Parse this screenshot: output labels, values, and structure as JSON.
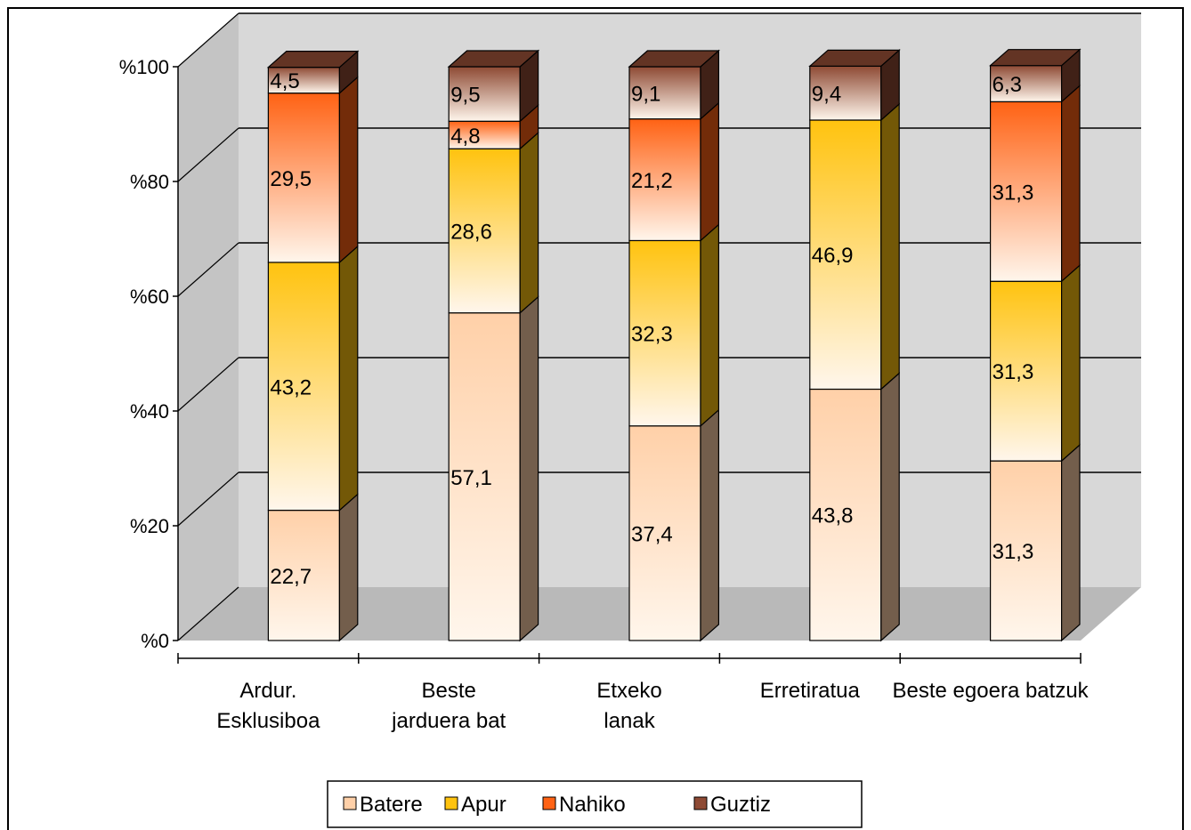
{
  "chart_data": {
    "type": "bar",
    "stacked": true,
    "percent": true,
    "three_d": true,
    "title": "",
    "xlabel": "",
    "ylabel": "",
    "ylim": [
      0,
      100
    ],
    "y_ticks": [
      "%0",
      "%20",
      "%40",
      "%60",
      "%80",
      "%100"
    ],
    "grid": true,
    "legend_position": "bottom",
    "categories": [
      [
        "Ardur.",
        "Esklusiboa"
      ],
      [
        "Beste",
        "jarduera bat"
      ],
      [
        "Etxeko",
        "lanak"
      ],
      [
        "Erretiratua"
      ],
      [
        "Beste egoera batzuk"
      ]
    ],
    "series": [
      {
        "name": "Batere",
        "values": [
          22.7,
          57.1,
          37.4,
          43.8,
          31.3
        ],
        "labels": [
          "22,7",
          "57,1",
          "37,4",
          "43,8",
          "31,3"
        ],
        "color": "#ffd0a8"
      },
      {
        "name": "Apur",
        "values": [
          43.2,
          28.6,
          32.3,
          46.9,
          31.3
        ],
        "labels": [
          "43,2",
          "28,6",
          "32,3",
          "46,9",
          "31,3"
        ],
        "color": "#ffc30f"
      },
      {
        "name": "Nahiko",
        "values": [
          29.5,
          4.8,
          21.2,
          0,
          31.3
        ],
        "labels": [
          "29,5",
          "4,8",
          "21,2",
          "",
          "31,3"
        ],
        "color": "#ff6214"
      },
      {
        "name": "Guztiz",
        "values": [
          4.5,
          9.5,
          9.1,
          9.4,
          6.3
        ],
        "labels": [
          "4,5",
          "9,5",
          "9,1",
          "9,4",
          "6,3"
        ],
        "color": "#8e4a34"
      }
    ]
  }
}
